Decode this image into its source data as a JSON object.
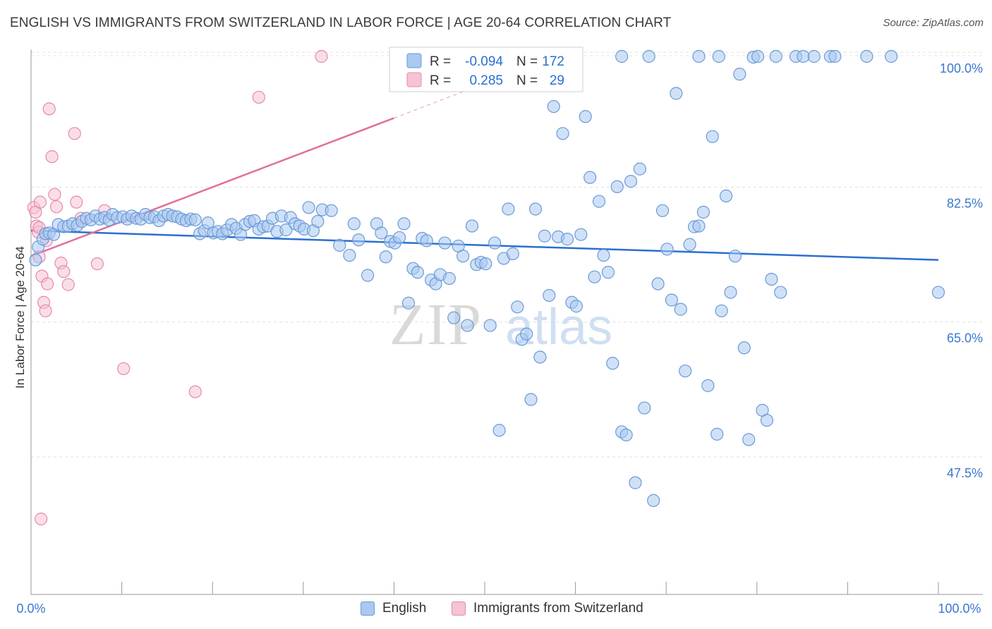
{
  "header": {
    "title": "ENGLISH VS IMMIGRANTS FROM SWITZERLAND IN LABOR FORCE | AGE 20-64 CORRELATION CHART",
    "source": "Source: ZipAtlas.com"
  },
  "watermark": {
    "zip": "ZIP",
    "atlas": "atlas"
  },
  "chart_data": {
    "type": "scatter",
    "title": "ENGLISH VS IMMIGRANTS FROM SWITZERLAND IN LABOR FORCE | AGE 20-64 CORRELATION CHART",
    "ylabel": "In Labor Force | Age 20-64",
    "xlabel": "",
    "xlim": [
      0,
      100
    ],
    "ylim": [
      32,
      102
    ],
    "x_tick_labels": {
      "left": "0.0%",
      "right": "100.0%"
    },
    "y_ticks": [
      {
        "value": 100,
        "label": "100.0%"
      },
      {
        "value": 82.5,
        "label": "82.5%"
      },
      {
        "value": 65,
        "label": "65.0%"
      },
      {
        "value": 47.5,
        "label": "47.5%"
      }
    ],
    "grid": "horizontal dashed",
    "legend_position": "top-center",
    "colors": {
      "english_fill": "#aac8f0",
      "english_stroke": "#6a9ad8",
      "english_line": "#2a6fd0",
      "swiss_fill": "#f6c3d3",
      "swiss_stroke": "#e58aa8",
      "swiss_line": "#e0709a",
      "value_text": "#2a6fd0",
      "tick_text": "#3a78d0"
    },
    "stats": [
      {
        "r_label": "R =",
        "r_value": "-0.094",
        "n_label": "N =",
        "n_value": "172"
      },
      {
        "r_label": "R =",
        "r_value": "0.285",
        "n_label": "N =",
        "n_value": "29"
      }
    ],
    "series": [
      {
        "name": "English",
        "trend": {
          "x": [
            0,
            100
          ],
          "y": [
            77.4,
            73.6
          ]
        },
        "points": [
          [
            0.5,
            73.6
          ],
          [
            0.8,
            75.3
          ],
          [
            1.3,
            76.3
          ],
          [
            1.6,
            77.0
          ],
          [
            2.0,
            77.1
          ],
          [
            2.5,
            76.9
          ],
          [
            3.0,
            78.2
          ],
          [
            3.6,
            77.9
          ],
          [
            4.1,
            78.0
          ],
          [
            4.6,
            78.3
          ],
          [
            5.1,
            78.1
          ],
          [
            5.6,
            78.6
          ],
          [
            6.1,
            79.0
          ],
          [
            6.6,
            78.8
          ],
          [
            7.1,
            79.3
          ],
          [
            7.6,
            78.9
          ],
          [
            8.1,
            79.1
          ],
          [
            8.6,
            78.8
          ],
          [
            9.0,
            79.5
          ],
          [
            9.5,
            79.1
          ],
          [
            10.1,
            79.2
          ],
          [
            10.6,
            78.9
          ],
          [
            11.1,
            79.3
          ],
          [
            11.6,
            79.0
          ],
          [
            12.1,
            78.9
          ],
          [
            12.6,
            79.5
          ],
          [
            13.1,
            79.1
          ],
          [
            13.6,
            79.2
          ],
          [
            14.1,
            78.7
          ],
          [
            14.6,
            79.3
          ],
          [
            15.1,
            79.5
          ],
          [
            15.6,
            79.3
          ],
          [
            16.1,
            79.2
          ],
          [
            16.6,
            78.9
          ],
          [
            17.1,
            78.7
          ],
          [
            17.6,
            78.9
          ],
          [
            18.1,
            78.8
          ],
          [
            18.6,
            77.0
          ],
          [
            19.1,
            77.4
          ],
          [
            19.5,
            78.4
          ],
          [
            20.1,
            77.1
          ],
          [
            20.6,
            77.3
          ],
          [
            21.1,
            77.0
          ],
          [
            21.6,
            77.5
          ],
          [
            22.1,
            78.2
          ],
          [
            22.6,
            77.7
          ],
          [
            23.1,
            76.9
          ],
          [
            23.6,
            78.2
          ],
          [
            24.1,
            78.6
          ],
          [
            24.6,
            78.7
          ],
          [
            25.1,
            77.6
          ],
          [
            25.6,
            77.9
          ],
          [
            26.1,
            78.0
          ],
          [
            26.6,
            79.0
          ],
          [
            27.1,
            77.3
          ],
          [
            27.6,
            79.3
          ],
          [
            28.1,
            77.5
          ],
          [
            28.6,
            79.1
          ],
          [
            29.1,
            78.3
          ],
          [
            29.6,
            78.0
          ],
          [
            30.1,
            77.6
          ],
          [
            30.6,
            80.4
          ],
          [
            31.1,
            77.4
          ],
          [
            31.6,
            78.6
          ],
          [
            32.1,
            80.1
          ],
          [
            33.1,
            80.0
          ],
          [
            34.0,
            75.5
          ],
          [
            35.1,
            74.2
          ],
          [
            35.6,
            78.3
          ],
          [
            36.1,
            76.2
          ],
          [
            37.1,
            71.6
          ],
          [
            38.1,
            78.3
          ],
          [
            38.6,
            77.1
          ],
          [
            39.1,
            74.0
          ],
          [
            39.6,
            76.0
          ],
          [
            40.1,
            75.8
          ],
          [
            40.6,
            76.5
          ],
          [
            41.1,
            78.3
          ],
          [
            41.6,
            68.0
          ],
          [
            42.1,
            72.5
          ],
          [
            42.6,
            72.0
          ],
          [
            43.1,
            76.4
          ],
          [
            43.6,
            76.1
          ],
          [
            44.1,
            71.0
          ],
          [
            44.6,
            70.5
          ],
          [
            45.1,
            71.7
          ],
          [
            45.6,
            75.8
          ],
          [
            46.1,
            71.2
          ],
          [
            46.6,
            66.1
          ],
          [
            47.1,
            75.4
          ],
          [
            47.6,
            74.1
          ],
          [
            48.1,
            65.1
          ],
          [
            48.6,
            78.0
          ],
          [
            49.1,
            73.0
          ],
          [
            49.6,
            73.3
          ],
          [
            50.1,
            73.1
          ],
          [
            50.6,
            65.1
          ],
          [
            51.1,
            75.8
          ],
          [
            51.6,
            51.5
          ],
          [
            52.1,
            73.8
          ],
          [
            52.6,
            80.2
          ],
          [
            53.1,
            74.4
          ],
          [
            53.6,
            67.5
          ],
          [
            54.1,
            63.3
          ],
          [
            54.6,
            64.0
          ],
          [
            55.1,
            55.5
          ],
          [
            55.6,
            80.2
          ],
          [
            56.1,
            61.0
          ],
          [
            56.6,
            76.7
          ],
          [
            57.1,
            69.0
          ],
          [
            57.6,
            93.5
          ],
          [
            58.1,
            76.6
          ],
          [
            58.6,
            90.0
          ],
          [
            59.1,
            76.3
          ],
          [
            59.6,
            68.1
          ],
          [
            60.1,
            67.6
          ],
          [
            60.6,
            76.9
          ],
          [
            61.1,
            92.2
          ],
          [
            61.6,
            84.3
          ],
          [
            62.1,
            71.4
          ],
          [
            62.6,
            81.2
          ],
          [
            63.1,
            74.2
          ],
          [
            63.6,
            72.0
          ],
          [
            64.1,
            60.2
          ],
          [
            64.6,
            83.1
          ],
          [
            65.1,
            51.3
          ],
          [
            65.6,
            50.9
          ],
          [
            66.1,
            83.8
          ],
          [
            66.6,
            44.7
          ],
          [
            67.1,
            85.4
          ],
          [
            67.6,
            54.4
          ],
          [
            68.1,
            100.0
          ],
          [
            68.6,
            42.4
          ],
          [
            69.1,
            70.5
          ],
          [
            69.6,
            80.0
          ],
          [
            70.1,
            75.0
          ],
          [
            70.6,
            68.4
          ],
          [
            71.1,
            95.2
          ],
          [
            71.6,
            67.2
          ],
          [
            72.1,
            59.2
          ],
          [
            72.6,
            75.6
          ],
          [
            73.1,
            77.9
          ],
          [
            73.6,
            78.0
          ],
          [
            74.1,
            79.8
          ],
          [
            74.6,
            57.3
          ],
          [
            75.1,
            89.6
          ],
          [
            75.6,
            51.0
          ],
          [
            76.1,
            67.0
          ],
          [
            76.6,
            81.9
          ],
          [
            77.1,
            69.4
          ],
          [
            77.6,
            74.1
          ],
          [
            78.1,
            97.7
          ],
          [
            78.6,
            62.2
          ],
          [
            79.1,
            50.3
          ],
          [
            79.6,
            99.9
          ],
          [
            80.1,
            100.0
          ],
          [
            80.6,
            54.1
          ],
          [
            81.1,
            52.8
          ],
          [
            81.6,
            71.1
          ],
          [
            82.1,
            100.0
          ],
          [
            82.6,
            69.4
          ],
          [
            84.3,
            100.0
          ],
          [
            85.1,
            100.0
          ],
          [
            86.3,
            100.0
          ],
          [
            88.1,
            100.0
          ],
          [
            88.6,
            100.0
          ],
          [
            92.1,
            100.0
          ],
          [
            94.8,
            100.0
          ],
          [
            100.0,
            69.4
          ],
          [
            75.8,
            100.0
          ],
          [
            73.6,
            100.0
          ],
          [
            65.1,
            100.0
          ]
        ]
      },
      {
        "name": "Immigrants from Switzerland",
        "trend": {
          "x": [
            0,
            40
          ],
          "y": [
            74.1,
            92.0
          ]
        },
        "trend_dashed": {
          "x": [
            40,
            52
          ],
          "y": [
            92.0,
            97.4
          ]
        },
        "points": [
          [
            0.3,
            80.4
          ],
          [
            0.5,
            79.8
          ],
          [
            0.6,
            78.0
          ],
          [
            0.8,
            77.2
          ],
          [
            0.9,
            74.0
          ],
          [
            1.0,
            81.1
          ],
          [
            1.2,
            71.5
          ],
          [
            1.4,
            68.1
          ],
          [
            1.6,
            67.0
          ],
          [
            1.8,
            70.5
          ],
          [
            2.0,
            93.2
          ],
          [
            2.3,
            87.0
          ],
          [
            2.6,
            82.1
          ],
          [
            2.8,
            80.5
          ],
          [
            3.3,
            73.2
          ],
          [
            3.6,
            72.1
          ],
          [
            4.1,
            70.4
          ],
          [
            4.8,
            90.0
          ],
          [
            5.0,
            81.1
          ],
          [
            5.5,
            79.0
          ],
          [
            7.3,
            73.1
          ],
          [
            8.1,
            80.0
          ],
          [
            10.2,
            59.5
          ],
          [
            18.1,
            56.5
          ],
          [
            25.1,
            94.7
          ],
          [
            32.0,
            100.0
          ],
          [
            1.1,
            40.0
          ],
          [
            0.9,
            77.8
          ],
          [
            1.7,
            76.1
          ]
        ]
      }
    ]
  }
}
